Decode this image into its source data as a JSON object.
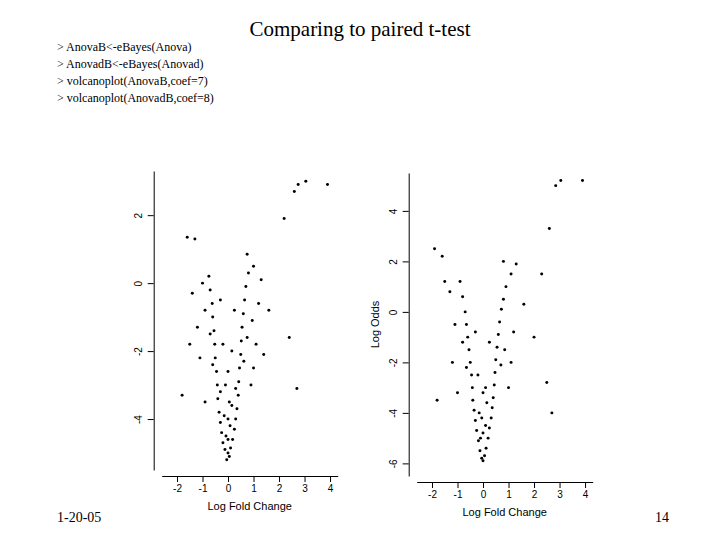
{
  "title": "Comparing to paired t-test",
  "code": [
    "> AnovaB<-eBayes(Anova)",
    "> AnovadB<-eBayes(Anovad)",
    "> volcanoplot(AnovaB,coef=7)",
    "> volcanoplot(AnovadB,coef=8)"
  ],
  "footer": "1-20-05",
  "page": "14",
  "chart_data": [
    {
      "type": "scatter",
      "color": "#000000",
      "marker": "circle",
      "x_label": "Log Fold Change",
      "xlim": [
        -2.6,
        4.3
      ],
      "xticks": [
        -2,
        -1,
        0,
        1,
        2,
        3,
        4
      ],
      "ylim": [
        -5.5,
        3.3
      ],
      "yticks": [
        -4,
        -2,
        0,
        2
      ],
      "x": [
        -0.05,
        0.05,
        0,
        -0.12,
        0.1,
        -0.2,
        0.18,
        -0.25,
        0.25,
        -0.3,
        0.3,
        -0.08,
        0.08,
        -0.35,
        0.35,
        -0.15,
        0.15,
        -0.4,
        0.4,
        -0.42,
        0.42,
        -0.3,
        0.3,
        -0.45,
        0.45,
        -0.5,
        0.5,
        -0.52,
        0.52,
        -0.55,
        0.55,
        -0.6,
        0.6,
        -0.62,
        0.65,
        -0.7,
        0.7,
        -0.75,
        0.8,
        -0.6,
        0.62,
        -0.7,
        0.75,
        -0.9,
        0.95,
        -0.9,
        -1.1,
        -1.2,
        -1.0,
        -1.4,
        -1.3,
        -1.6,
        -1.8,
        -1.5,
        0.9,
        1.0,
        1.1,
        1.2,
        1.0,
        0.75,
        1.3,
        1.6,
        1.4,
        2.7,
        2.4,
        2.2,
        2.6,
        2.75,
        3.05,
        3.9,
        -0.3,
        0.25,
        -0.2,
        0.15,
        0.0,
        -0.1,
        0.05,
        0.0,
        0.0
      ],
      "values": [
        -5.2,
        -5.1,
        -5.0,
        -4.9,
        -4.85,
        -4.7,
        -4.6,
        -4.4,
        -4.3,
        -4.1,
        -4.0,
        -4.5,
        -4.2,
        -3.8,
        -3.7,
        -3.9,
        -3.6,
        -3.4,
        -3.3,
        -3.0,
        -2.9,
        -3.2,
        -3.1,
        -2.6,
        -2.5,
        -2.2,
        -2.1,
        -1.8,
        -1.7,
        -1.4,
        -1.3,
        -1.0,
        -0.9,
        -0.6,
        -0.5,
        -0.2,
        -0.1,
        0.2,
        0.3,
        -2.4,
        -2.3,
        -1.5,
        -1.6,
        -0.8,
        -1.1,
        -3.5,
        -2.2,
        -1.3,
        0.0,
        -0.3,
        1.3,
        1.35,
        -3.3,
        -1.8,
        -3.0,
        -2.5,
        -1.8,
        -0.6,
        0.5,
        0.85,
        0.1,
        -0.8,
        -2.1,
        -3.1,
        -1.6,
        1.9,
        2.7,
        2.9,
        3.0,
        2.9,
        -0.5,
        -0.8,
        -1.8,
        -2.0,
        -2.6,
        -3.0,
        -3.5,
        -4.0,
        -4.6
      ]
    },
    {
      "type": "scatter",
      "color": "#000000",
      "marker": "circle",
      "x_label": "Log Fold Change",
      "y_label": "Log Odds",
      "xlim": [
        -2.6,
        4.3
      ],
      "xticks": [
        -2,
        -1,
        0,
        1,
        2,
        3,
        4
      ],
      "ylim": [
        -6.5,
        5.5
      ],
      "yticks": [
        -6,
        -4,
        -2,
        0,
        2,
        4
      ],
      "x": [
        0,
        -0.05,
        0.06,
        -0.12,
        0.12,
        -0.18,
        0.2,
        -0.25,
        0.25,
        -0.3,
        0.32,
        -0.35,
        0.36,
        -0.4,
        0.4,
        -0.1,
        0.1,
        -0.15,
        0.15,
        0,
        0,
        -0.42,
        0.44,
        -0.45,
        0.47,
        -0.5,
        0.5,
        -0.55,
        0.55,
        -0.6,
        0.6,
        -0.65,
        0.65,
        -0.7,
        0.72,
        -0.8,
        0.8,
        -0.9,
        0.9,
        -0.65,
        0.7,
        -0.8,
        0.85,
        -1.0,
        -1.2,
        -1.1,
        -1.3,
        -1.6,
        -1.9,
        -1.5,
        -1.8,
        1.0,
        1.1,
        1.2,
        1.1,
        1.3,
        0.8,
        1.6,
        2.0,
        2.5,
        2.7,
        2.3,
        2.6,
        2.85,
        3.05,
        3.9,
        -0.3,
        0.25,
        -0.2,
        0.1,
        -0.05
      ],
      "values": [
        -5.9,
        -5.8,
        -5.7,
        -5.5,
        -5.4,
        -5.1,
        -5.0,
        -4.7,
        -4.6,
        -4.3,
        -4.2,
        -3.9,
        -3.8,
        -3.5,
        -3.4,
        -5.0,
        -4.5,
        -4.0,
        -3.6,
        -4.8,
        -3.2,
        -3.0,
        -2.9,
        -2.5,
        -2.4,
        -2.0,
        -1.9,
        -1.5,
        -1.4,
        -1.0,
        -0.9,
        -0.5,
        -0.4,
        0.0,
        0.1,
        0.6,
        0.5,
        1.2,
        1.0,
        -2.2,
        -2.1,
        -1.2,
        -1.5,
        -3.2,
        -2.0,
        -0.5,
        0.8,
        2.2,
        2.5,
        1.2,
        -3.5,
        -3.0,
        -2.0,
        -0.8,
        1.5,
        1.9,
        2.0,
        0.3,
        -1.0,
        -2.8,
        -4.0,
        1.5,
        3.3,
        5.0,
        5.2,
        5.2,
        -0.8,
        -1.2,
        -2.5,
        -3.0,
        -4.2
      ]
    }
  ]
}
